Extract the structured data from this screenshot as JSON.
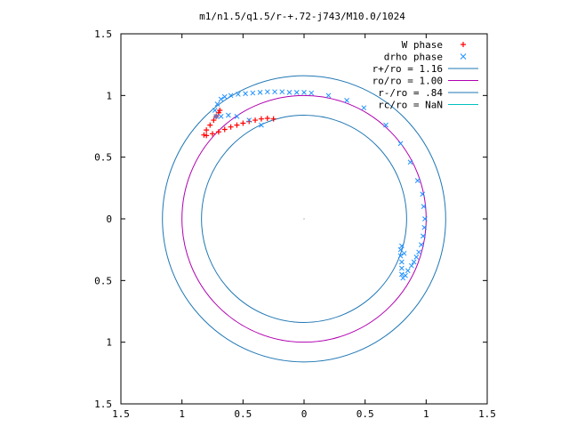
{
  "chart_data": {
    "type": "scatter",
    "title": "m1/n1.5/q1.5/r-+.72-j743/M10.0/1024",
    "xlabel": "",
    "ylabel": "",
    "xlim": [
      -1.5,
      1.5
    ],
    "ylim": [
      -1.5,
      1.5
    ],
    "x_ticks": [
      -1.5,
      -1,
      -0.5,
      0,
      0.5,
      1,
      1.5
    ],
    "y_ticks": [
      -1.5,
      -1,
      -0.5,
      0,
      0.5,
      1,
      1.5
    ],
    "x_tick_labels": [
      "1.5",
      "1",
      "0.5",
      "0",
      "0.5",
      "1",
      "1.5"
    ],
    "y_tick_labels": [
      "1.5",
      "1",
      "0.5",
      "0",
      "0.5",
      "1",
      "1.5"
    ],
    "grid": false,
    "legend_position": "top-right",
    "series": [
      {
        "name": "W phase",
        "kind": "points",
        "marker": "+",
        "color": "#ff0000",
        "points": [
          [
            -0.25,
            0.81
          ],
          [
            -0.3,
            0.815
          ],
          [
            -0.35,
            0.81
          ],
          [
            -0.4,
            0.8
          ],
          [
            -0.45,
            0.79
          ],
          [
            -0.5,
            0.775
          ],
          [
            -0.55,
            0.76
          ],
          [
            -0.6,
            0.745
          ],
          [
            -0.65,
            0.725
          ],
          [
            -0.7,
            0.705
          ],
          [
            -0.75,
            0.69
          ],
          [
            -0.8,
            0.675
          ],
          [
            -0.82,
            0.68
          ],
          [
            -0.8,
            0.72
          ],
          [
            -0.77,
            0.76
          ],
          [
            -0.74,
            0.8
          ],
          [
            -0.72,
            0.83
          ],
          [
            -0.7,
            0.86
          ],
          [
            -0.69,
            0.88
          ]
        ]
      },
      {
        "name": "drho phase",
        "kind": "points",
        "marker": "x",
        "color": "#1e90ff",
        "points": [
          [
            -0.35,
            0.76
          ],
          [
            -0.45,
            0.8
          ],
          [
            -0.55,
            0.83
          ],
          [
            -0.62,
            0.84
          ],
          [
            -0.68,
            0.83
          ],
          [
            -0.72,
            0.83
          ],
          [
            -0.73,
            0.88
          ],
          [
            -0.71,
            0.93
          ],
          [
            -0.68,
            0.97
          ],
          [
            -0.65,
            0.99
          ],
          [
            -0.6,
            1.0
          ],
          [
            -0.54,
            1.01
          ],
          [
            -0.48,
            1.015
          ],
          [
            -0.42,
            1.02
          ],
          [
            -0.36,
            1.025
          ],
          [
            -0.3,
            1.03
          ],
          [
            -0.24,
            1.03
          ],
          [
            -0.18,
            1.03
          ],
          [
            -0.12,
            1.025
          ],
          [
            -0.06,
            1.025
          ],
          [
            0.0,
            1.025
          ],
          [
            0.06,
            1.02
          ],
          [
            0.2,
            1.0
          ],
          [
            0.35,
            0.96
          ],
          [
            0.49,
            0.9
          ],
          [
            0.67,
            0.76
          ],
          [
            0.79,
            0.61
          ],
          [
            0.87,
            0.46
          ],
          [
            0.93,
            0.31
          ],
          [
            0.97,
            0.2
          ],
          [
            0.98,
            0.1
          ],
          [
            0.99,
            0.0
          ],
          [
            0.985,
            -0.07
          ],
          [
            0.975,
            -0.14
          ],
          [
            0.96,
            -0.21
          ],
          [
            0.94,
            -0.27
          ],
          [
            0.92,
            -0.31
          ],
          [
            0.9,
            -0.35
          ],
          [
            0.88,
            -0.38
          ],
          [
            0.85,
            -0.42
          ],
          [
            0.83,
            -0.46
          ],
          [
            0.81,
            -0.48
          ],
          [
            0.8,
            -0.45
          ],
          [
            0.8,
            -0.4
          ],
          [
            0.8,
            -0.35
          ],
          [
            0.79,
            -0.3
          ],
          [
            0.79,
            -0.25
          ],
          [
            0.8,
            -0.22
          ],
          [
            0.82,
            -0.28
          ]
        ]
      },
      {
        "name": "r+/ro = 1.16",
        "kind": "circle",
        "radius": 1.16,
        "color": "#1f77b4"
      },
      {
        "name": "ro/ro = 1.00",
        "kind": "circle",
        "radius": 1.0,
        "color": "#b000b0"
      },
      {
        "name": "r-/ro = .84",
        "kind": "circle",
        "radius": 0.84,
        "color": "#1f77b4"
      },
      {
        "name": "rc/ro = NaN",
        "kind": "circle",
        "radius": null,
        "color": "#00c0c0"
      }
    ]
  }
}
